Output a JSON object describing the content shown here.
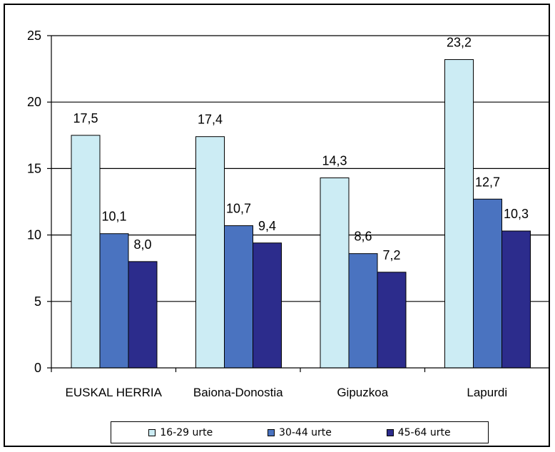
{
  "chart_data": {
    "type": "bar",
    "categories": [
      "EUSKAL HERRIA",
      "Baiona-Donostia",
      "Gipuzkoa",
      "Lapurdi"
    ],
    "series": [
      {
        "name": "16-29 urte",
        "color": "#ccecf4",
        "values": [
          17.5,
          17.4,
          14.3,
          23.2
        ],
        "labels": [
          "17,5",
          "17,4",
          "14,3",
          "23,2"
        ]
      },
      {
        "name": "30-44 urte",
        "color": "#4a73c0",
        "values": [
          10.1,
          10.7,
          8.6,
          12.7
        ],
        "labels": [
          "10,1",
          "10,7",
          "8,6",
          "12,7"
        ]
      },
      {
        "name": "45-64 urte",
        "color": "#2c2c8c",
        "values": [
          8.0,
          9.4,
          7.2,
          10.3
        ],
        "labels": [
          "8,0",
          "9,4",
          "7,2",
          "10,3"
        ]
      }
    ],
    "yticks": [
      "0",
      "5",
      "10",
      "15",
      "20",
      "25"
    ],
    "ylim": [
      0,
      25
    ],
    "grid": true,
    "legend_position": "bottom"
  }
}
